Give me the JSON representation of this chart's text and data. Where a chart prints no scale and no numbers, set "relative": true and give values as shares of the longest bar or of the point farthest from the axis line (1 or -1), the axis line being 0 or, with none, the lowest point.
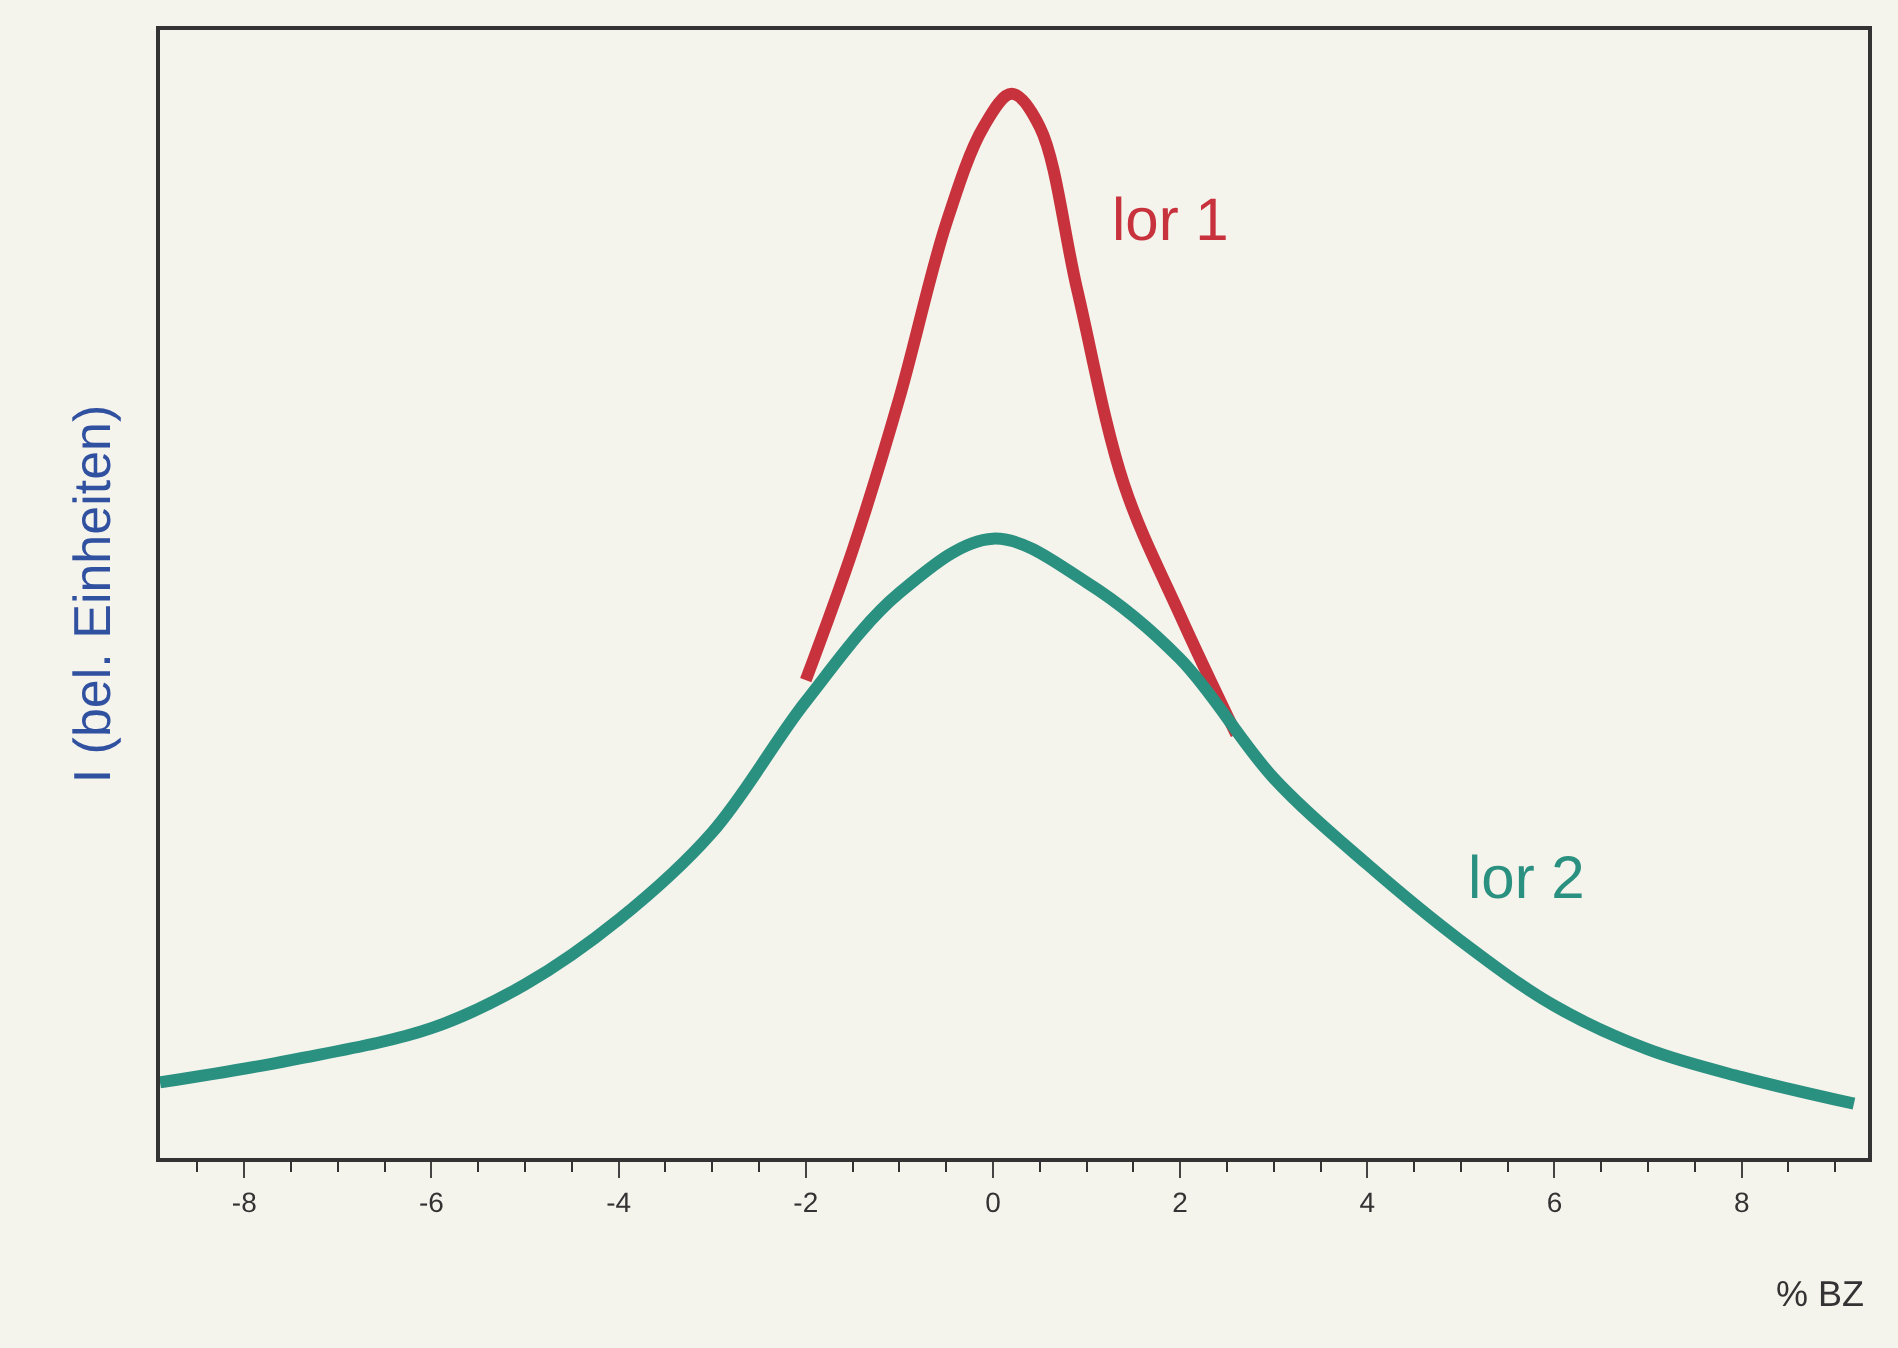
{
  "chart_data": {
    "type": "line",
    "relative": true,
    "xlabel": "% BZ",
    "ylabel": "I (bel. Einheiten)",
    "xlim": [
      -8.9,
      9.35
    ],
    "xticks": [
      -8,
      -6,
      -4,
      -2,
      0,
      2,
      4,
      6,
      8
    ],
    "grid": false,
    "legend": false,
    "marker": "none",
    "line_style": "solid",
    "series": [
      {
        "name": "lor 1",
        "color": "#c8323c",
        "x": [
          -2,
          -1.5,
          -1,
          -0.5,
          -0.1,
          0.2,
          0.5,
          0.9,
          1.4,
          2,
          2.6
        ],
        "values": [
          0.449,
          0.571,
          0.714,
          0.878,
          0.969,
          1,
          0.969,
          0.816,
          0.633,
          0.51,
          0.398
        ]
      },
      {
        "name": "lor 2",
        "color": "#2a9080",
        "x": [
          -8.9,
          -7.5,
          -6,
          -5,
          -4,
          -3,
          -2,
          -1,
          0,
          1,
          2,
          3,
          4,
          5,
          6,
          7,
          8,
          9.2
        ],
        "values": [
          0.071,
          0.092,
          0.122,
          0.163,
          0.224,
          0.306,
          0.429,
          0.531,
          0.582,
          0.541,
          0.469,
          0.357,
          0.276,
          0.204,
          0.143,
          0.102,
          0.076,
          0.051
        ]
      }
    ]
  }
}
